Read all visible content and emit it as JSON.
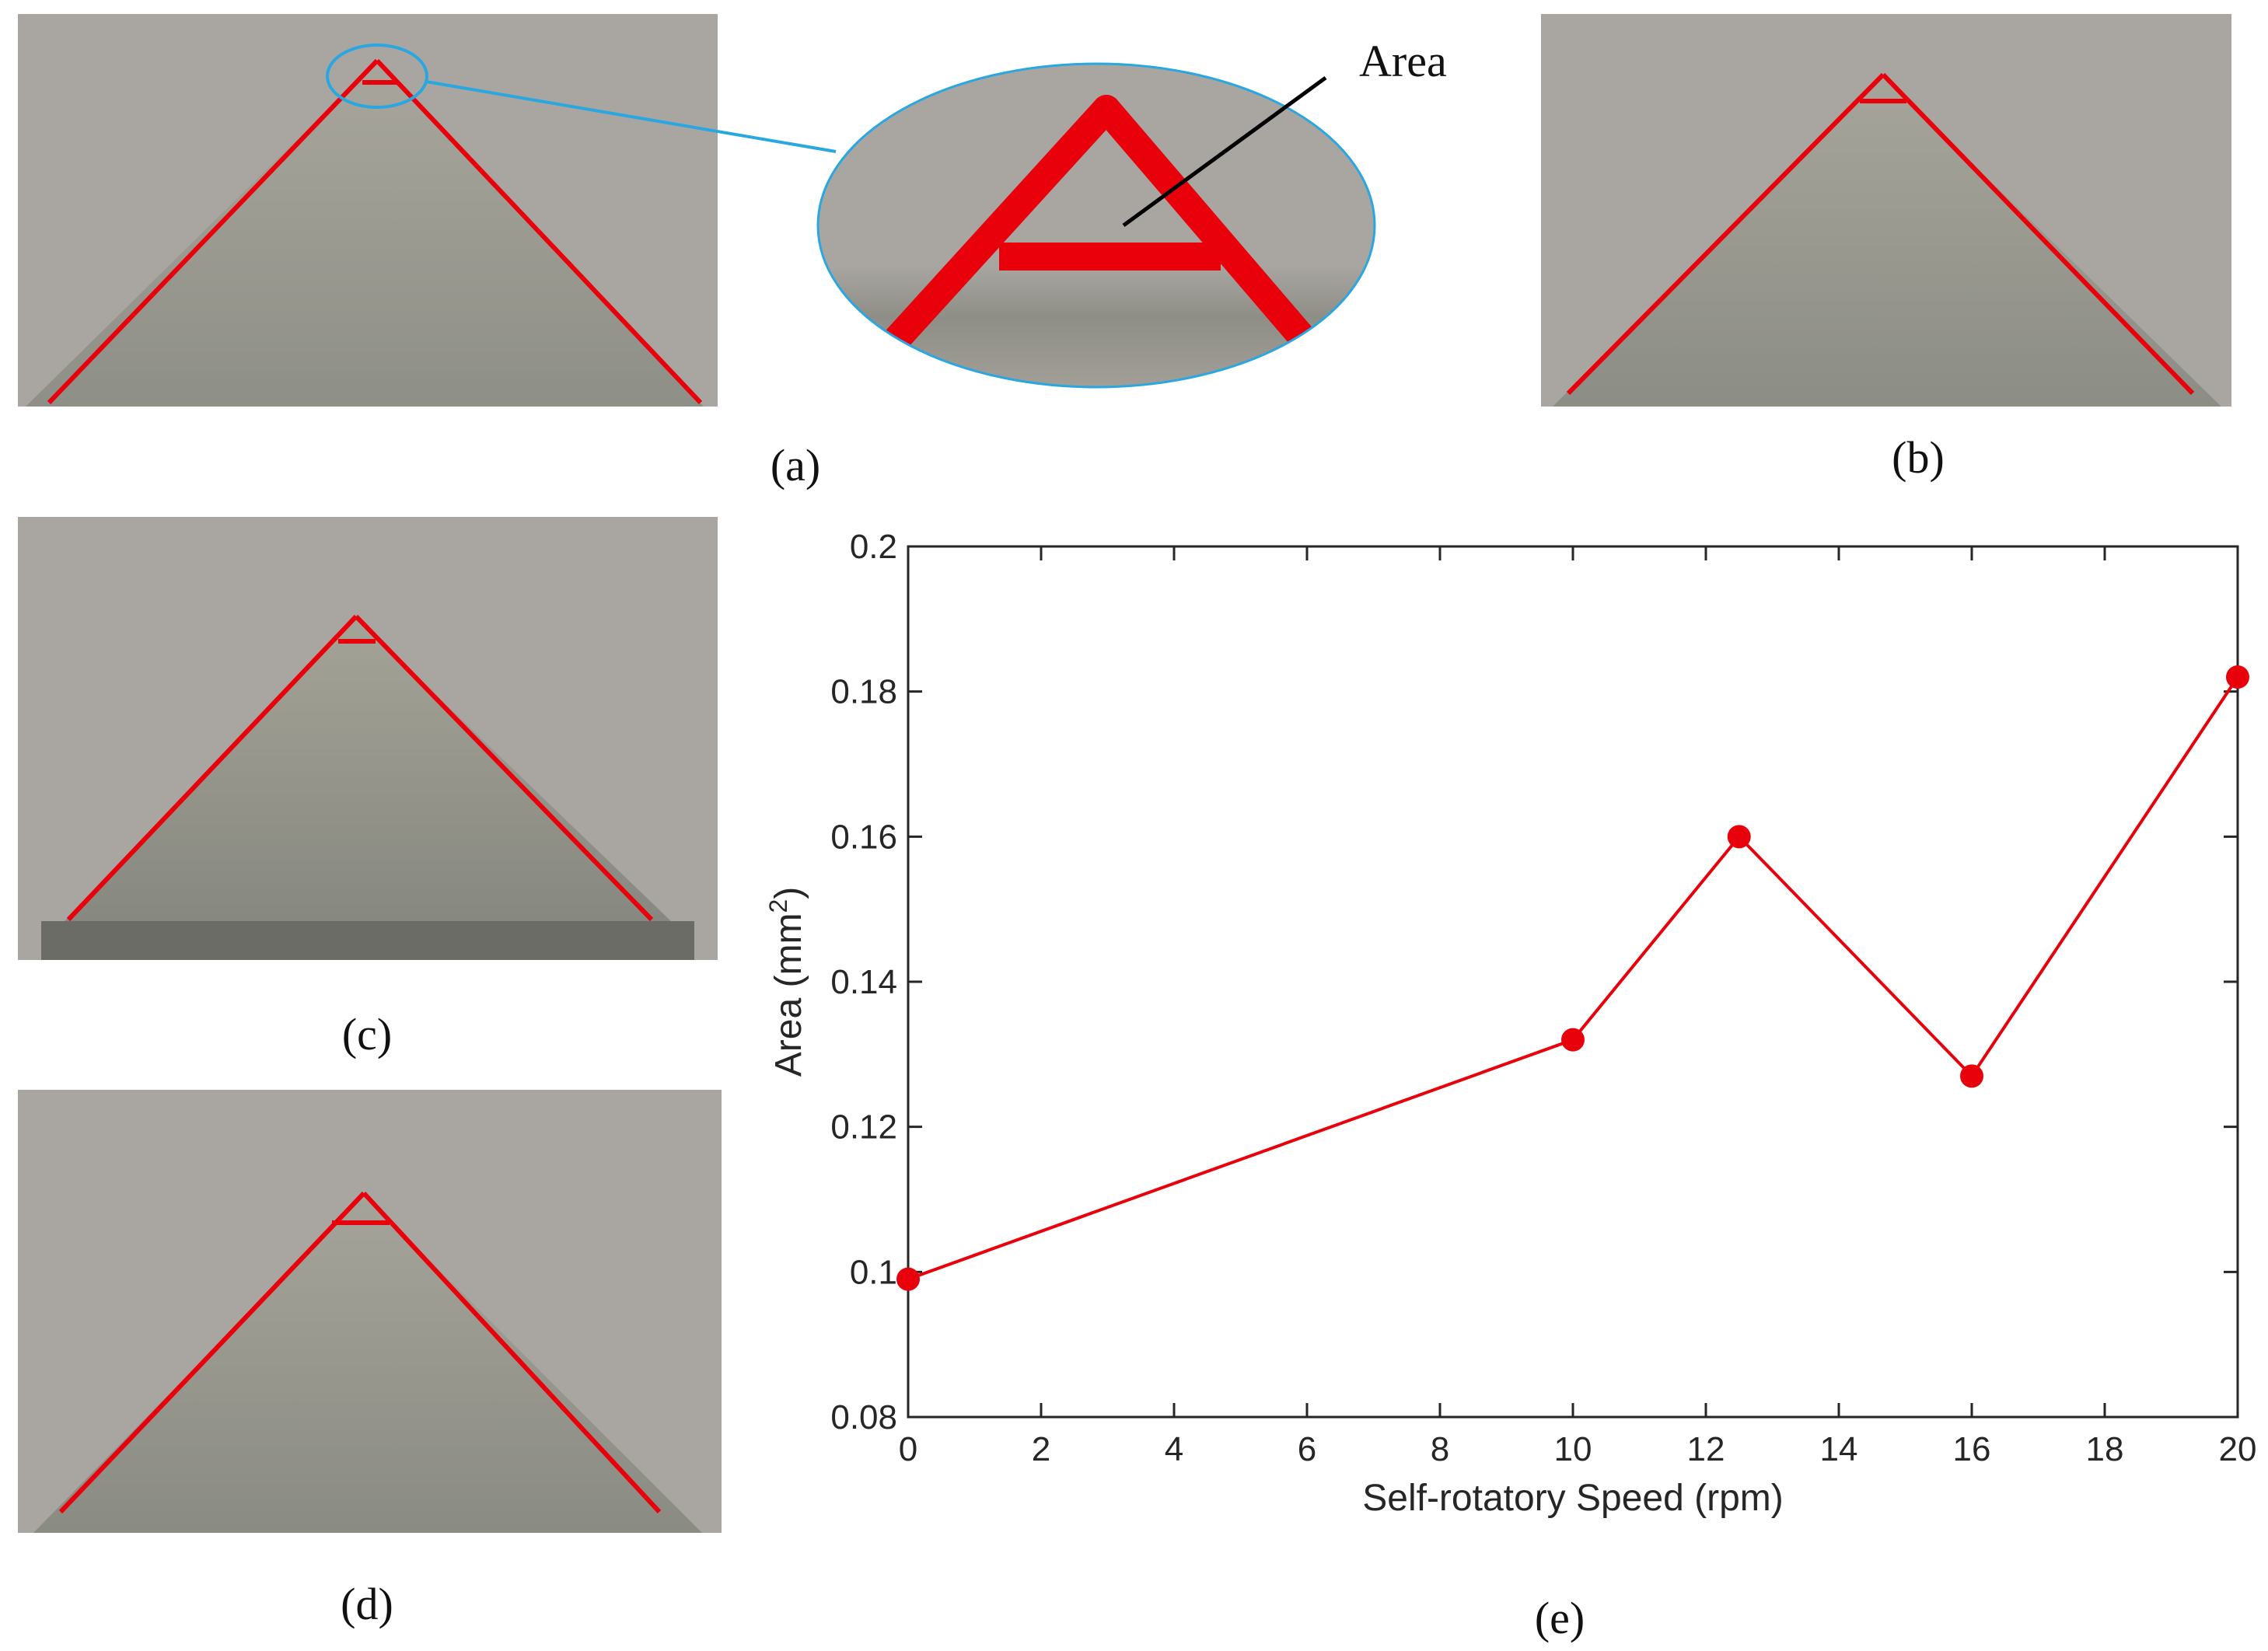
{
  "panels": {
    "a": "(a)",
    "b": "(b)",
    "c": "(c)",
    "d": "(d)",
    "e": "(e)"
  },
  "callout": {
    "label": "Area"
  },
  "colors": {
    "accent": "#e8000b",
    "callout_line": "#2aa6e0",
    "photo_bg": "#a9a6a2",
    "metal": "#9a9b92"
  },
  "chart_data": {
    "type": "line",
    "xlabel": "Self-rotatory Speed (rpm)",
    "ylabel": "Area (mm",
    "ylabel_sup": "2",
    "ylabel_end": ")",
    "xlim": [
      0,
      20
    ],
    "ylim": [
      0.08,
      0.2
    ],
    "xticks": [
      0,
      2,
      4,
      6,
      8,
      10,
      12,
      14,
      16,
      18,
      20
    ],
    "yticks": [
      0.08,
      0.1,
      0.12,
      0.14,
      0.16,
      0.18,
      0.2
    ],
    "ytick_labels": [
      "0.08",
      "0.1",
      "0.12",
      "0.14",
      "0.16",
      "0.18",
      "0.2"
    ],
    "series": [
      {
        "x": [
          0,
          10,
          12.5,
          16,
          20
        ],
        "y": [
          0.099,
          0.132,
          0.16,
          0.127,
          0.182
        ],
        "color": "#e8000b"
      }
    ],
    "grid": false,
    "legend": "none"
  }
}
